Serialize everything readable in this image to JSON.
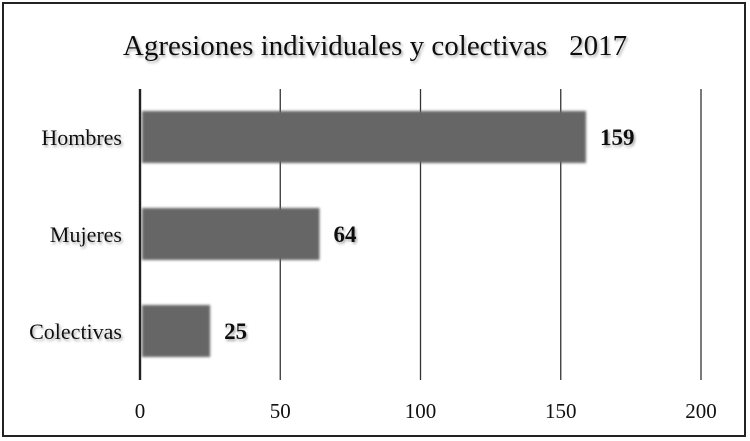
{
  "chart_data": {
    "type": "bar",
    "orientation": "horizontal",
    "title": "Agresiones individuales y colectivas   2017",
    "categories": [
      "Hombres",
      "Mujeres",
      "Colectivas"
    ],
    "values": [
      159,
      64,
      25
    ],
    "xlabel": "",
    "ylabel": "",
    "xlim": [
      0,
      200
    ],
    "x_ticks": [
      "0",
      "50",
      "100",
      "150",
      "200"
    ],
    "data_labels": [
      "159",
      "64",
      "25"
    ],
    "grid": "vertical",
    "bar_color": "#666666",
    "legend": "none"
  }
}
